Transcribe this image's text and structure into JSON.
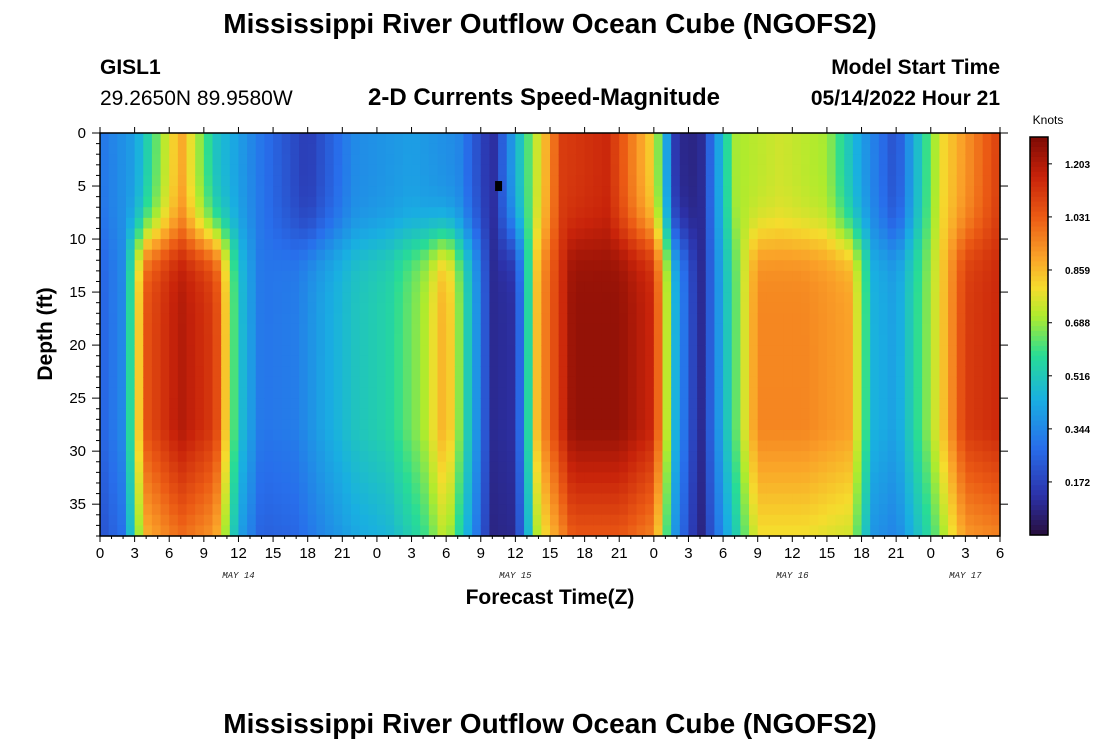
{
  "header": {
    "title": "Mississippi River Outflow Ocean Cube (NGOFS2)",
    "station": "GISL1",
    "coords": "29.2650N  89.9580W",
    "subtitle": "2-D Currents Speed-Magnitude",
    "start_label": "Model Start Time",
    "start_value": "05/14/2022 Hour 21"
  },
  "footer": {
    "title": "Mississippi River Outflow Ocean Cube (NGOFS2)"
  },
  "chart_data": {
    "type": "heatmap",
    "title": "2-D Currents Speed-Magnitude",
    "xlabel": "Forecast Time(Z)",
    "ylabel": "Depth (ft)",
    "x_tick_labels": [
      "0",
      "3",
      "6",
      "9",
      "12",
      "15",
      "18",
      "21",
      "0",
      "3",
      "6",
      "9",
      "12",
      "15",
      "18",
      "21",
      "0",
      "3",
      "6",
      "9",
      "12",
      "15",
      "18",
      "21",
      "0",
      "3",
      "6"
    ],
    "x_range_hours_from_may14_00": [
      0,
      78
    ],
    "date_labels": [
      {
        "label": "MAY 14",
        "hour": 12
      },
      {
        "label": "MAY 15",
        "hour": 36
      },
      {
        "label": "MAY 16",
        "hour": 60
      },
      {
        "label": "MAY 17",
        "hour": 75
      }
    ],
    "y_ticks": [
      0,
      5,
      10,
      15,
      20,
      25,
      30,
      35
    ],
    "ylim": [
      0,
      38
    ],
    "y_inverted": true,
    "colorbar": {
      "unit": "Knots",
      "min": 0.0,
      "max": 1.29,
      "ticks": [
        "1.203",
        "1.031",
        "0.859",
        "0.688",
        "0.516",
        "0.344",
        "0.172"
      ],
      "tick_values": [
        1.203,
        1.031,
        0.859,
        0.688,
        0.516,
        0.344,
        0.172
      ]
    },
    "surface_layer_speed_by_hour": {
      "hours": [
        0,
        3,
        7,
        10,
        14,
        18,
        22,
        27,
        31,
        34,
        37,
        40,
        44,
        48,
        50,
        52,
        55,
        59,
        63,
        66,
        69,
        73,
        78
      ],
      "speed_knots": [
        0.3,
        0.4,
        0.9,
        0.5,
        0.3,
        0.15,
        0.35,
        0.4,
        0.35,
        0.1,
        0.6,
        1.1,
        1.15,
        0.8,
        0.1,
        0.08,
        0.7,
        0.75,
        0.7,
        0.4,
        0.2,
        0.8,
        1.1
      ]
    },
    "deep_layer_speed_by_hour": {
      "hours": [
        0,
        2,
        4,
        7,
        10,
        12,
        14,
        17,
        19,
        22,
        25,
        28,
        30,
        32,
        34,
        36,
        38,
        41,
        45,
        48,
        50,
        52,
        54,
        57,
        61,
        65,
        67,
        69,
        72,
        75,
        78
      ],
      "speed_knots": [
        0.25,
        0.35,
        1.05,
        1.2,
        1.1,
        0.5,
        0.3,
        0.32,
        0.4,
        0.5,
        0.55,
        0.7,
        0.9,
        0.5,
        0.1,
        0.12,
        0.9,
        1.25,
        1.25,
        1.15,
        0.4,
        0.08,
        0.45,
        0.95,
        0.95,
        0.9,
        0.45,
        0.4,
        0.7,
        1.1,
        1.15
      ]
    },
    "annotations": [
      {
        "type": "marker",
        "hour": 34.5,
        "depth_ft": 5
      }
    ]
  }
}
